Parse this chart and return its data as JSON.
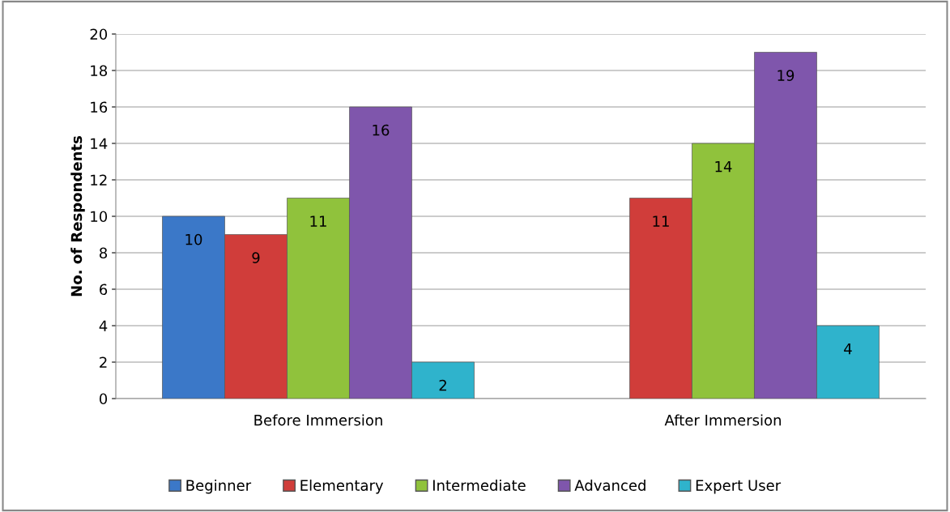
{
  "chart_data": {
    "type": "bar",
    "ylabel": "No. of Respondents",
    "categories": [
      "Before Immersion",
      "After Immersion"
    ],
    "series": [
      {
        "name": "Beginner",
        "color": "#3b78c8",
        "values": [
          10,
          null
        ]
      },
      {
        "name": "Elementary",
        "color": "#d03d3a",
        "values": [
          9,
          11
        ]
      },
      {
        "name": "Intermediate",
        "color": "#90c23c",
        "values": [
          11,
          14
        ]
      },
      {
        "name": "Advanced",
        "color": "#7f56ac",
        "values": [
          16,
          19
        ]
      },
      {
        "name": "Expert User",
        "color": "#2fb3cc",
        "values": [
          2,
          4
        ]
      }
    ],
    "ylim": [
      0,
      20
    ],
    "yticks": [
      0,
      2,
      4,
      6,
      8,
      10,
      12,
      14,
      16,
      18,
      20
    ],
    "grid": "y",
    "legend": "bottom",
    "data_labels": true
  }
}
